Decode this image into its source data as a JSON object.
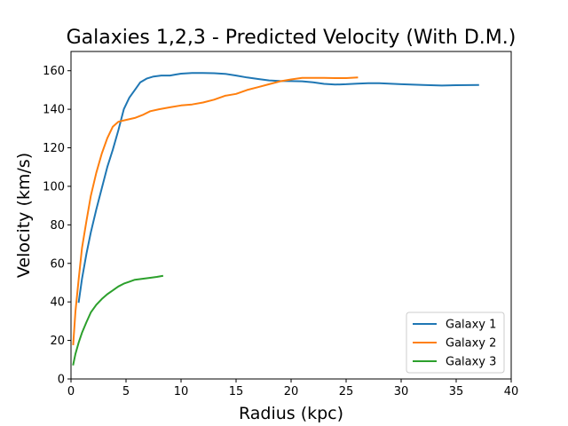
{
  "chart_data": {
    "type": "line",
    "title": "Galaxies 1,2,3 - Predicted Velocity (With D.M.)",
    "xlabel": "Radius (kpc)",
    "ylabel": "Velocity (km/s)",
    "xlim": [
      0,
      40
    ],
    "ylim": [
      0,
      170
    ],
    "xticks": [
      0,
      5,
      10,
      15,
      20,
      25,
      30,
      35,
      40
    ],
    "yticks": [
      0,
      20,
      40,
      60,
      80,
      100,
      120,
      140,
      160
    ],
    "grid": false,
    "legend_position": "lower-right",
    "series": [
      {
        "name": "Galaxy 1",
        "color": "#1f77b4",
        "x": [
          0.7,
          1.0,
          1.4,
          1.8,
          2.3,
          2.8,
          3.3,
          3.8,
          4.3,
          4.8,
          5.3,
          5.8,
          6.3,
          6.9,
          7.5,
          8.2,
          9.0,
          9.5,
          10.0,
          11.0,
          12.0,
          13.0,
          14.0,
          15.0,
          16.0,
          17.0,
          18.0,
          19.0,
          20.0,
          21.0,
          22.0,
          23.0,
          24.0,
          25.0,
          26.0,
          27.0,
          28.0,
          30.0,
          32.0,
          33.7,
          35.0,
          37.0
        ],
        "y": [
          40,
          52,
          65,
          76,
          88,
          99,
          110,
          119,
          129,
          140,
          146,
          150,
          154,
          156,
          157,
          157.5,
          157.5,
          158,
          158.5,
          158.8,
          158.8,
          158.7,
          158.4,
          157.5,
          156.5,
          155.7,
          155,
          154.7,
          154.6,
          154.5,
          154,
          153.2,
          152.8,
          153,
          153.3,
          153.5,
          153.5,
          153,
          152.6,
          152.3,
          152.5,
          152.6
        ]
      },
      {
        "name": "Galaxy 2",
        "color": "#ff7f0e",
        "x": [
          0.2,
          0.4,
          0.7,
          1.0,
          1.4,
          1.8,
          2.3,
          2.8,
          3.3,
          3.8,
          4.3,
          5.0,
          5.8,
          6.5,
          7.2,
          8.0,
          9.0,
          10.0,
          11.0,
          12.0,
          13.0,
          14.0,
          15.0,
          16.0,
          17.0,
          18.0,
          19.0,
          20.0,
          21.0,
          22.0,
          23.0,
          24.0,
          25.0,
          26.0
        ],
        "y": [
          18,
          35,
          52,
          68,
          82,
          95,
          107,
          117,
          125,
          131,
          133.5,
          134.5,
          135.5,
          137,
          139,
          140,
          141,
          142,
          142.5,
          143.5,
          145,
          147,
          148,
          150,
          151.5,
          153,
          154.5,
          155.5,
          156.3,
          156.3,
          156.3,
          156.2,
          156.2,
          156.5
        ]
      },
      {
        "name": "Galaxy 3",
        "color": "#2ca02c",
        "x": [
          0.2,
          0.4,
          0.7,
          1.0,
          1.4,
          1.8,
          2.3,
          2.8,
          3.3,
          3.8,
          4.3,
          4.8,
          5.3,
          5.8,
          6.5,
          7.2,
          7.8,
          8.3
        ],
        "y": [
          7.5,
          13,
          19,
          24,
          29.5,
          34.5,
          38.5,
          41.5,
          44,
          46,
          48,
          49.5,
          50.5,
          51.5,
          52,
          52.5,
          53,
          53.5
        ]
      }
    ]
  }
}
